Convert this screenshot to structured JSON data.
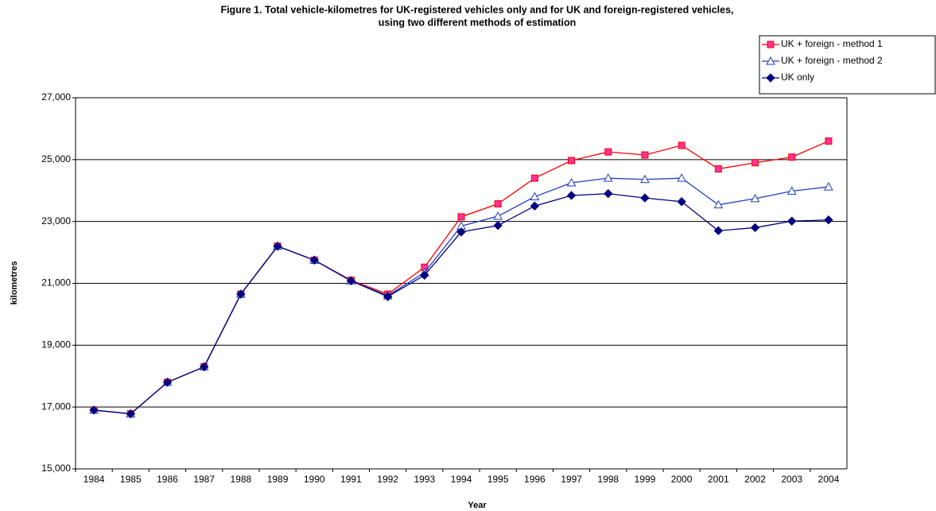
{
  "chart_data": {
    "type": "line",
    "title": "Figure 1. Total vehicle-kilometres for UK-registered vehicles only and for UK and foreign-registered vehicles,",
    "subtitle": "using two different methods of estimation",
    "x_label": "Year",
    "y_label": "kilometres",
    "categories": [
      "1984",
      "1985",
      "1986",
      "1987",
      "1988",
      "1989",
      "1990",
      "1991",
      "1992",
      "1993",
      "1994",
      "1995",
      "1996",
      "1997",
      "1998",
      "1999",
      "2000",
      "2001",
      "2002",
      "2003",
      "2004"
    ],
    "series": [
      {
        "name": "UK + foreign - method 1",
        "color": "#ff0000",
        "marker": "square",
        "marker_fill": "#ff3399",
        "values": [
          16900,
          16780,
          17800,
          18300,
          20650,
          22200,
          21750,
          21100,
          20650,
          21520,
          23150,
          23570,
          24400,
          24970,
          25250,
          25150,
          25460,
          24700,
          24900,
          25080,
          25600
        ]
      },
      {
        "name": "UK + foreign - method 2",
        "color": "#1f3fbf",
        "marker": "triangle",
        "marker_fill": "#ffffff",
        "values": [
          16900,
          16780,
          17800,
          18300,
          20650,
          22200,
          21750,
          21080,
          20600,
          21350,
          22850,
          23170,
          23800,
          24250,
          24400,
          24360,
          24400,
          23540,
          23740,
          23980,
          24120
        ]
      },
      {
        "name": "UK only",
        "color": "#000080",
        "marker": "diamond",
        "marker_fill": "#000080",
        "values": [
          16900,
          16780,
          17800,
          18300,
          20650,
          22200,
          21750,
          21080,
          20570,
          21260,
          22660,
          22870,
          23500,
          23840,
          23900,
          23760,
          23640,
          22700,
          22800,
          23010,
          23050
        ]
      }
    ],
    "ylim": [
      15000,
      27000
    ],
    "yticks": [
      {
        "value": 15000,
        "label": "15,000"
      },
      {
        "value": 17000,
        "label": "17,000"
      },
      {
        "value": 19000,
        "label": "19,000"
      },
      {
        "value": 21000,
        "label": "21,000"
      },
      {
        "value": 23000,
        "label": "23,000"
      },
      {
        "value": 25000,
        "label": "25,000"
      },
      {
        "value": 27000,
        "label": "27,000"
      }
    ],
    "grid": true,
    "legend": "top-right"
  }
}
